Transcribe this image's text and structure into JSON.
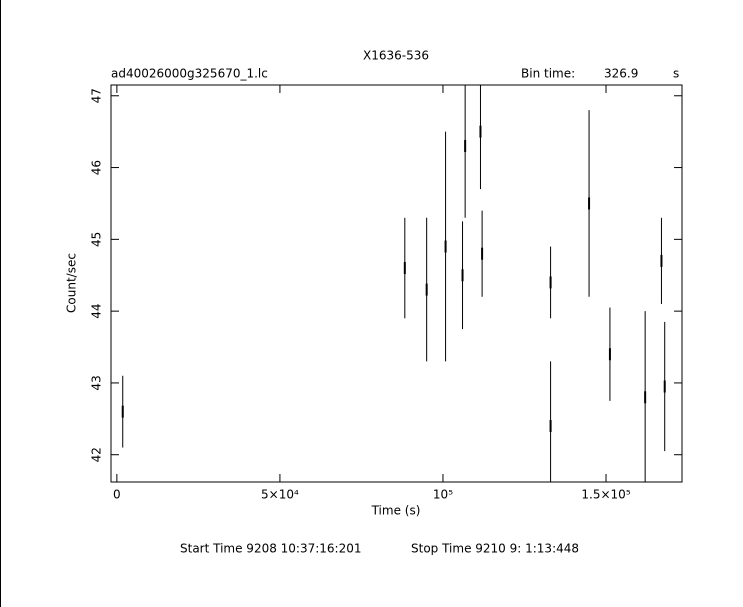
{
  "chart_data": {
    "type": "errorbar",
    "title": "X1636-536",
    "file_label": "ad40026000g325670_1.lc",
    "bin_label": "Bin time:",
    "bin_value": "326.9",
    "bin_unit": "s",
    "xlabel": "Time (s)",
    "ylabel": "Count/sec",
    "start_label": "Start Time  9208 10:37:16:201",
    "stop_label": "Stop Time  9210  9: 1:13:448",
    "color": "#000000",
    "x": [
      1800,
      88300,
      95000,
      100800,
      106000,
      106800,
      111500,
      112000,
      133000,
      133000,
      144800,
      151200,
      162000,
      167000,
      168000
    ],
    "values": [
      42.6,
      44.6,
      44.3,
      44.9,
      44.5,
      46.3,
      46.5,
      44.8,
      44.4,
      42.4,
      45.5,
      43.4,
      42.8,
      44.7,
      42.95
    ],
    "errors": [
      0.5,
      0.7,
      1.0,
      1.6,
      0.75,
      1.0,
      0.8,
      0.6,
      0.5,
      0.9,
      1.3,
      0.65,
      1.2,
      0.6,
      0.9
    ],
    "xlim": [
      -1800,
      173300
    ],
    "ylim": [
      41.62,
      47.15
    ],
    "xticks": [
      0,
      {
        "value": 50000,
        "label": "5×10⁴"
      },
      {
        "value": 100000,
        "label": "10⁵"
      },
      {
        "value": 150000,
        "label": "1.5×10⁵"
      }
    ],
    "yticks": [
      42,
      43,
      44,
      45,
      46,
      47
    ]
  }
}
